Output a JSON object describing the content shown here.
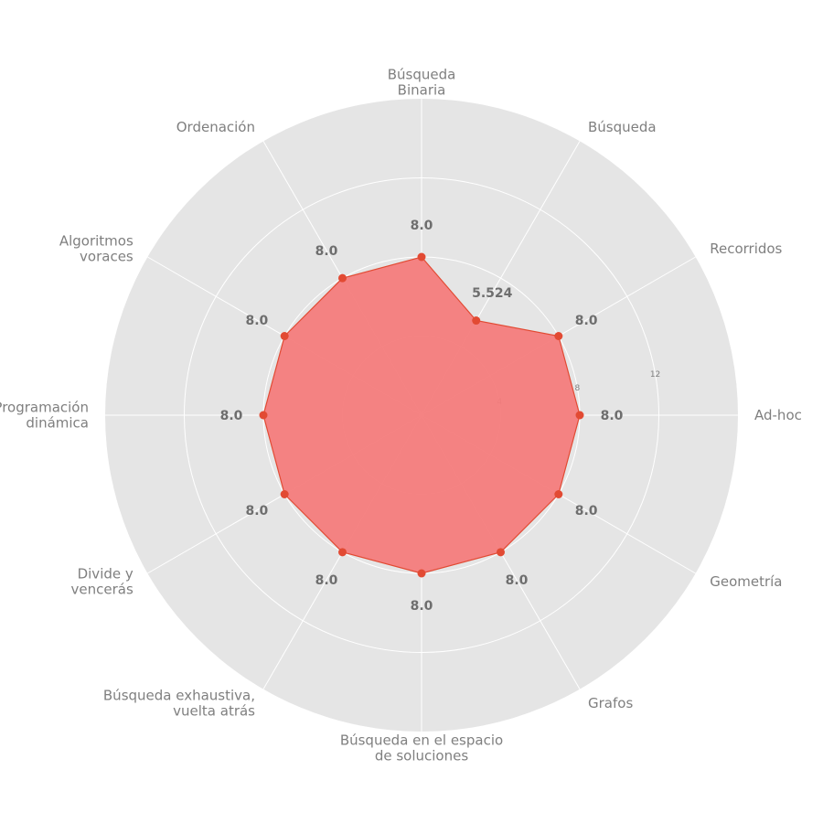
{
  "chart_data": {
    "type": "radar",
    "title": "",
    "categories": [
      "Ad-hoc",
      "Recorridos",
      "Búsqueda",
      "Búsqueda\nBinaria",
      "Ordenación",
      "Algoritmos\nvoraces",
      "Programación\ndinámica",
      "Divide y\nvencerás",
      "Búsqueda exhaustiva,\nvuelta atrás",
      "Búsqueda en el espacio\nde soluciones",
      "Grafos",
      "Geometría"
    ],
    "series": [
      {
        "values": [
          8.0,
          8.0,
          5.524,
          8.0,
          8.0,
          8.0,
          8.0,
          8.0,
          8.0,
          8.0,
          8.0,
          8.0
        ],
        "value_labels": [
          "8.0",
          "8.0",
          "5.524",
          "8.0",
          "8.0",
          "8.0",
          "8.0",
          "8.0",
          "8.0",
          "8.0",
          "8.0",
          "8.0"
        ],
        "color": "#e24a33",
        "fill_color": "#f47c7c"
      }
    ],
    "radial_ticks": [
      4,
      8,
      12
    ],
    "radial_range": [
      0,
      16
    ],
    "grid": true,
    "background_color": "#e5e5e5",
    "grid_color": "#ffffff"
  }
}
